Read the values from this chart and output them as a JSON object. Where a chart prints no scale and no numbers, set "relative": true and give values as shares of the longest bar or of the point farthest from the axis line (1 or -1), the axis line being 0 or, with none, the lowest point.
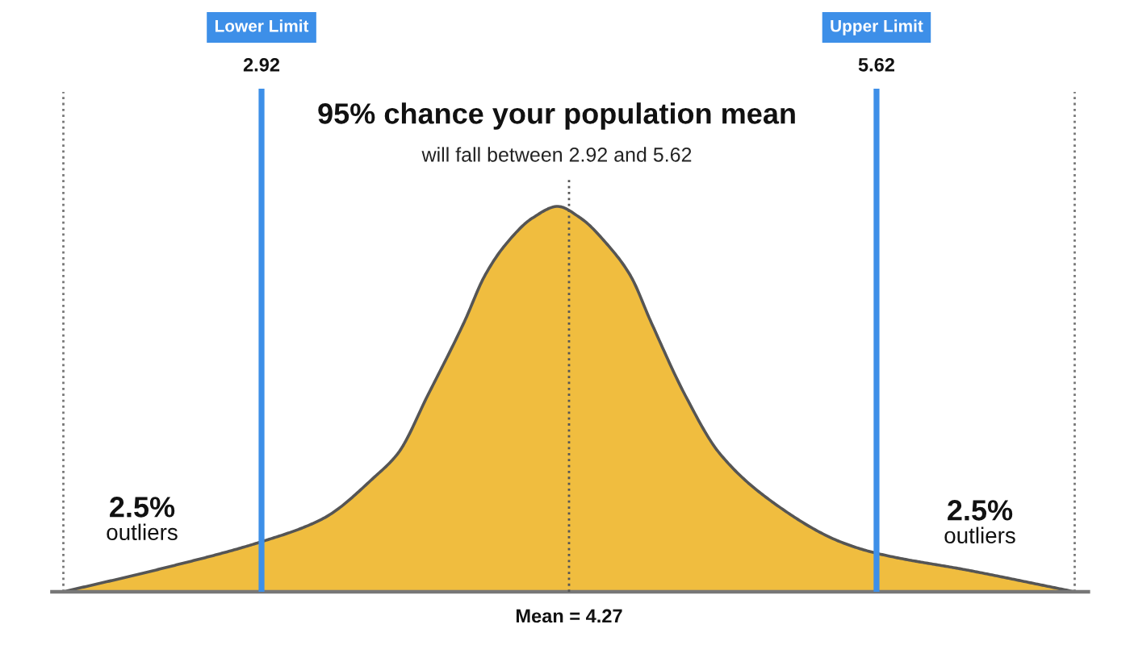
{
  "chart_data": {
    "type": "area",
    "title": "95% chance your population mean",
    "subtitle": "will fall between 2.92 and 5.62",
    "relative": true,
    "x": [
      2.05,
      2.48,
      2.92,
      3.19,
      3.42,
      3.52,
      3.65,
      3.81,
      3.9,
      3.99,
      4.11,
      4.22,
      4.32,
      4.44,
      4.54,
      4.63,
      4.78,
      4.93,
      5.17,
      5.46,
      5.62,
      6.03,
      6.49
    ],
    "series": [
      {
        "color": "#f0bd3f",
        "values": [
          0,
          0.06,
          0.13,
          0.19,
          0.3,
          0.36,
          0.51,
          0.7,
          0.82,
          0.9,
          0.97,
          1.0,
          0.97,
          0.9,
          0.82,
          0.7,
          0.51,
          0.36,
          0.23,
          0.13,
          0.1,
          0.055,
          0
        ]
      }
    ],
    "xlim": [
      2.0,
      6.55
    ],
    "xticks": [
      2.92,
      5.62
    ],
    "ref_lines": [
      {
        "axis": "x",
        "value": 2.92,
        "color": "#3d8fe8",
        "line_style": "solid"
      },
      {
        "axis": "x",
        "value": 5.62,
        "color": "#3d8fe8",
        "line_style": "solid"
      },
      {
        "axis": "x",
        "value": 4.27,
        "label": "Mean = 4.27",
        "color": "#555555",
        "line_style": "dotted"
      },
      {
        "axis": "x",
        "value": 2.05,
        "color": "#777777",
        "line_style": "dotted"
      },
      {
        "axis": "x",
        "value": 6.49,
        "color": "#777777",
        "line_style": "dotted"
      }
    ],
    "annotations": [
      "Lower Limit",
      "Upper Limit",
      "2.5%\noutliers",
      "2.5%\noutliers"
    ]
  }
}
